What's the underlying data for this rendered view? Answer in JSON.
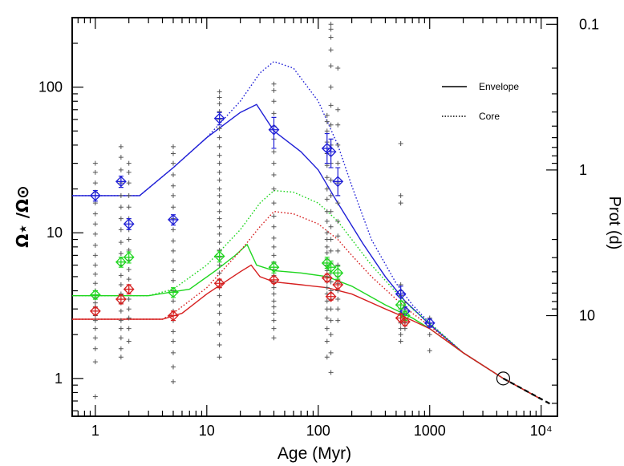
{
  "chart_data": {
    "type": "scatter",
    "title": "",
    "xlabel": "Age (Myr)",
    "ylabel": "Ω⋆ /Ω⊙",
    "ylabel_right": "Prot (d)",
    "x_scale": "log",
    "y_scale": "log",
    "xlim": [
      0.62,
      14000
    ],
    "ylim": [
      0.55,
      300
    ],
    "x_ticks": [
      {
        "value": 1,
        "label": "1"
      },
      {
        "value": 10,
        "label": "10"
      },
      {
        "value": 100,
        "label": "100"
      },
      {
        "value": 1000,
        "label": "1000"
      },
      {
        "value": 10000,
        "label": "10⁴"
      }
    ],
    "y_ticks": [
      {
        "value": 1,
        "label": "1"
      },
      {
        "value": 10,
        "label": "10"
      },
      {
        "value": 100,
        "label": "100"
      }
    ],
    "right_ticks": [
      {
        "value": 0.1,
        "label": "0.1"
      },
      {
        "value": 1,
        "label": "1"
      },
      {
        "value": 10,
        "label": "10"
      }
    ],
    "grid": false,
    "legend_position": "top-right",
    "legend": [
      {
        "label": "Envelope",
        "style": "solid"
      },
      {
        "label": "Core",
        "style": "dotted"
      }
    ],
    "colors": {
      "blue": "#1f1fd6",
      "green": "#1fd61f",
      "red": "#d61f1f",
      "obs": "#555555",
      "black": "#000000"
    },
    "series": [
      {
        "color": "blue",
        "style": "solid",
        "x": [
          0.62,
          2.5,
          5,
          10,
          20,
          28,
          40,
          70,
          100,
          150,
          250,
          400,
          600,
          1000,
          2000,
          4570,
          10000
        ],
        "y": [
          18,
          18,
          28,
          45,
          67,
          76,
          50,
          36,
          27,
          16,
          8.5,
          5.0,
          3.4,
          2.35,
          1.5,
          1.0,
          0.72
        ]
      },
      {
        "color": "blue",
        "style": "dotted",
        "x": [
          0.62,
          2.5,
          5,
          10,
          20,
          30,
          40,
          60,
          100,
          150,
          200,
          300,
          500,
          700,
          1000,
          2000,
          4570,
          10000
        ],
        "y": [
          18,
          18,
          28,
          45,
          80,
          125,
          150,
          135,
          80,
          40,
          21,
          9.0,
          4.5,
          3.2,
          2.4,
          1.5,
          1.0,
          0.72
        ]
      },
      {
        "color": "green",
        "style": "solid",
        "x": [
          0.62,
          3,
          7,
          12,
          18,
          23,
          28,
          40,
          70,
          120,
          200,
          400,
          700,
          1000,
          2000,
          4570,
          10000
        ],
        "y": [
          3.7,
          3.7,
          4.1,
          5.5,
          7.0,
          8.3,
          6.0,
          5.5,
          5.3,
          5.0,
          4.3,
          3.2,
          2.6,
          2.2,
          1.5,
          1.0,
          0.72
        ]
      },
      {
        "color": "green",
        "style": "dotted",
        "x": [
          0.62,
          3,
          5,
          10,
          20,
          30,
          40,
          60,
          100,
          150,
          200,
          300,
          500,
          700,
          1000,
          2000,
          4570,
          10000
        ],
        "y": [
          3.7,
          3.7,
          4.1,
          6.0,
          10.5,
          16,
          19.5,
          19,
          16,
          12,
          9.0,
          6.0,
          3.9,
          3.0,
          2.4,
          1.5,
          1.0,
          0.72
        ]
      },
      {
        "color": "red",
        "style": "solid",
        "x": [
          0.62,
          4,
          6,
          10,
          20,
          25,
          30,
          40,
          70,
          120,
          200,
          400,
          700,
          1000,
          2000,
          4570,
          10000
        ],
        "y": [
          2.55,
          2.55,
          2.8,
          3.8,
          5.4,
          6.0,
          5.0,
          4.6,
          4.4,
          4.2,
          3.8,
          3.0,
          2.5,
          2.2,
          1.5,
          1.0,
          0.72
        ]
      },
      {
        "color": "red",
        "style": "dotted",
        "x": [
          0.62,
          4,
          5,
          10,
          20,
          30,
          40,
          60,
          100,
          150,
          200,
          300,
          500,
          700,
          1000,
          2000,
          4570,
          10000
        ],
        "y": [
          2.55,
          2.55,
          2.8,
          4.2,
          7.5,
          11,
          14,
          13.5,
          11.5,
          9.0,
          7.0,
          5.0,
          3.5,
          2.8,
          2.3,
          1.5,
          1.0,
          0.72
        ]
      },
      {
        "color": "black",
        "style": "dashed",
        "x": [
          4570,
          12000
        ],
        "y": [
          1.0,
          0.67
        ]
      }
    ],
    "observations": [
      {
        "age": 1,
        "y": [
          0.75,
          1.3,
          1.6,
          1.9,
          2.2,
          2.5,
          2.7,
          2.9,
          3.1,
          3.3,
          3.6,
          4.0,
          4.5,
          5.2,
          6.0,
          7.0,
          8.2,
          9.8,
          11.5,
          13.5,
          16,
          19,
          22,
          26,
          30
        ]
      },
      {
        "age": 1.7,
        "y": [
          1.4,
          1.6,
          1.9,
          2.2,
          2.5,
          2.9,
          3.3,
          3.8,
          4.4,
          5.1,
          6.0,
          7.2,
          8.6,
          10.5,
          12.5,
          15,
          18,
          22,
          27,
          33,
          39
        ]
      },
      {
        "age": 2,
        "y": [
          1.8,
          2.2,
          2.6,
          3.0,
          3.5,
          4.1,
          4.8,
          5.6,
          6.5,
          7.6,
          9.0,
          10.5,
          12.5,
          15,
          18,
          22,
          26,
          30
        ]
      },
      {
        "age": 5,
        "y": [
          0.95,
          1.2,
          1.5,
          1.8,
          2.1,
          2.5,
          2.9,
          3.4,
          4.0,
          4.7,
          5.5,
          6.4,
          7.5,
          8.8,
          10.5,
          12.5,
          15,
          18,
          21,
          25,
          30,
          35,
          39
        ]
      },
      {
        "age": 13,
        "y": [
          1.4,
          1.7,
          2.0,
          2.4,
          2.8,
          3.2,
          3.7,
          4.2,
          4.7,
          5.3,
          6.0,
          6.8,
          7.6,
          8.6,
          9.8,
          11,
          12.5,
          14,
          16,
          18,
          20,
          23,
          26,
          30,
          34,
          39,
          45,
          52,
          60,
          68,
          77,
          85,
          93
        ]
      },
      {
        "age": 40,
        "y": [
          1.9,
          2.2,
          2.5,
          2.8,
          3.1,
          3.4,
          3.8,
          4.2,
          4.6,
          5.1,
          5.6,
          6.2,
          7.0,
          8.0,
          9.2,
          11,
          13,
          16,
          20,
          25,
          30,
          36,
          44,
          54,
          66,
          80,
          95,
          105
        ]
      },
      {
        "age": 120,
        "y": [
          1.4,
          1.8,
          2.2,
          2.6,
          3.0,
          3.4,
          3.8,
          4.2,
          4.6,
          5.0,
          5.5,
          6.0,
          6.6,
          7.3,
          8.0,
          9.0,
          10,
          12,
          14,
          17,
          20,
          24,
          29,
          35,
          42,
          50,
          58,
          64
        ]
      },
      {
        "age": 130,
        "y": [
          1.1,
          1.5,
          2.0,
          2.5,
          3.0,
          3.5,
          4.0,
          4.6,
          5.3,
          6.2,
          7.5,
          9.0,
          11,
          14,
          18,
          23,
          30,
          40,
          55,
          75,
          100,
          140,
          180,
          220,
          250,
          270
        ]
      },
      {
        "age": 150,
        "y": [
          2.5,
          3.0,
          3.5,
          4.0,
          4.5,
          5.0,
          6.0,
          7.5,
          9.5,
          12,
          16,
          22,
          30,
          40,
          55,
          70,
          135
        ]
      },
      {
        "age": 550,
        "y": [
          1.8,
          2.0,
          2.2,
          2.4,
          2.6,
          2.8,
          3.0,
          3.2,
          3.4,
          3.7,
          4.0,
          4.4,
          16,
          18,
          41
        ]
      },
      {
        "age": 600,
        "y": [
          2.2,
          2.4,
          2.6,
          2.8,
          3.0,
          3.3
        ]
      },
      {
        "age": 1000,
        "y": [
          1.55,
          2.0,
          2.3,
          2.6
        ]
      },
      {
        "age": 4570,
        "y": [
          1.0
        ]
      }
    ],
    "markers": [
      {
        "color": "blue",
        "points": [
          {
            "x": 1,
            "y": 18,
            "lo": 16.5,
            "hi": 19.5
          },
          {
            "x": 1.7,
            "y": 22.5,
            "lo": 20.5,
            "hi": 24.5
          },
          {
            "x": 2,
            "y": 11.5,
            "lo": 10.5,
            "hi": 12.5
          },
          {
            "x": 5,
            "y": 12.3,
            "lo": 11.3,
            "hi": 13.3
          },
          {
            "x": 13,
            "y": 61,
            "lo": 55,
            "hi": 67
          },
          {
            "x": 40,
            "y": 51,
            "lo": 38,
            "hi": 62
          },
          {
            "x": 120,
            "y": 38,
            "lo": 30,
            "hi": 48
          },
          {
            "x": 130,
            "y": 36,
            "lo": 28,
            "hi": 44
          },
          {
            "x": 150,
            "y": 22.5,
            "lo": 18,
            "hi": 28
          },
          {
            "x": 550,
            "y": 3.8,
            "lo": 3.4,
            "hi": 4.3
          },
          {
            "x": 600,
            "y": 2.9,
            "lo": 2.7,
            "hi": 3.1
          },
          {
            "x": 1000,
            "y": 2.4,
            "lo": 2.25,
            "hi": 2.55
          }
        ]
      },
      {
        "color": "green",
        "points": [
          {
            "x": 1,
            "y": 3.75,
            "lo": 3.5,
            "hi": 4.0
          },
          {
            "x": 1.7,
            "y": 6.3,
            "lo": 5.8,
            "hi": 6.8
          },
          {
            "x": 2,
            "y": 6.8,
            "lo": 6.2,
            "hi": 7.4
          },
          {
            "x": 5,
            "y": 3.9,
            "lo": 3.6,
            "hi": 4.2
          },
          {
            "x": 13,
            "y": 6.9,
            "lo": 6.3,
            "hi": 7.5
          },
          {
            "x": 40,
            "y": 5.8,
            "lo": 5.3,
            "hi": 6.3
          },
          {
            "x": 120,
            "y": 6.2,
            "lo": 5.7,
            "hi": 6.8
          },
          {
            "x": 130,
            "y": 5.8,
            "lo": 5.3,
            "hi": 6.4
          },
          {
            "x": 150,
            "y": 5.3,
            "lo": 4.8,
            "hi": 5.9
          },
          {
            "x": 550,
            "y": 3.2,
            "lo": 3.0,
            "hi": 3.4
          },
          {
            "x": 600,
            "y": 2.7,
            "lo": 2.5,
            "hi": 2.9
          }
        ]
      },
      {
        "color": "red",
        "points": [
          {
            "x": 1,
            "y": 2.9,
            "lo": 2.75,
            "hi": 3.05
          },
          {
            "x": 1.7,
            "y": 3.5,
            "lo": 3.25,
            "hi": 3.75
          },
          {
            "x": 2,
            "y": 4.1,
            "lo": 3.8,
            "hi": 4.4
          },
          {
            "x": 5,
            "y": 2.7,
            "lo": 2.5,
            "hi": 2.9
          },
          {
            "x": 13,
            "y": 4.5,
            "lo": 4.2,
            "hi": 4.8
          },
          {
            "x": 40,
            "y": 4.75,
            "lo": 4.5,
            "hi": 5.0
          },
          {
            "x": 120,
            "y": 4.9,
            "lo": 4.6,
            "hi": 5.2
          },
          {
            "x": 130,
            "y": 3.65,
            "lo": 3.45,
            "hi": 3.85
          },
          {
            "x": 150,
            "y": 4.4,
            "lo": 4.1,
            "hi": 4.7
          },
          {
            "x": 550,
            "y": 2.6,
            "lo": 2.45,
            "hi": 2.75
          },
          {
            "x": 600,
            "y": 2.45,
            "lo": 2.3,
            "hi": 2.6
          }
        ]
      }
    ],
    "sun_marker": {
      "x": 4570,
      "y": 1.0
    }
  }
}
